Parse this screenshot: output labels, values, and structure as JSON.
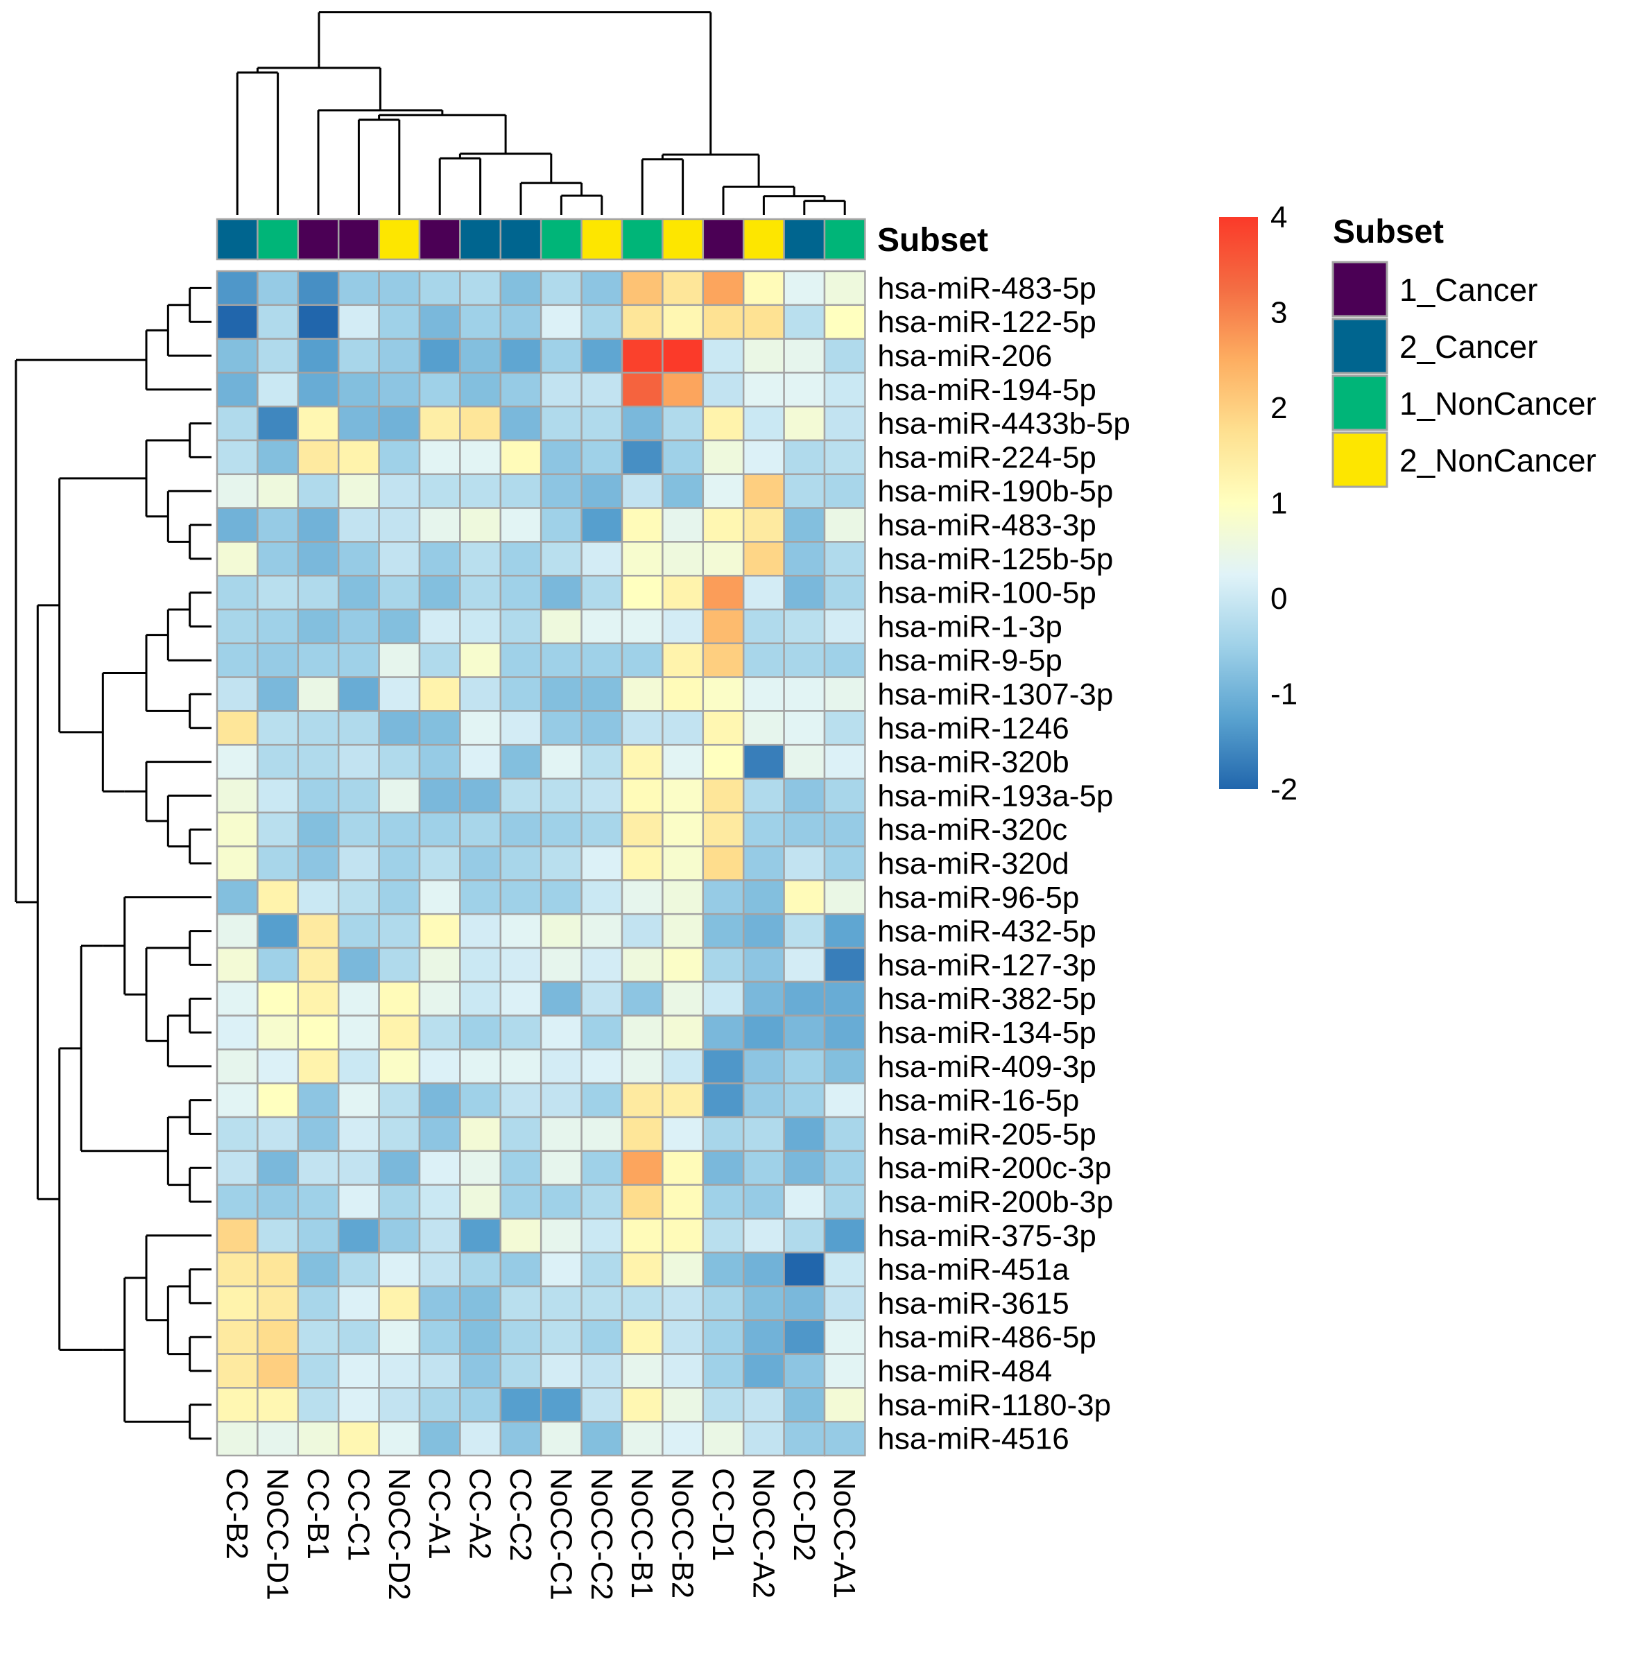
{
  "chart_data": {
    "type": "heatmap",
    "title": "",
    "columns": [
      "CC-B2",
      "NoCC-D1",
      "CC-B1",
      "CC-C1",
      "NoCC-D2",
      "CC-A1",
      "CC-A2",
      "CC-C2",
      "NoCC-C1",
      "NoCC-C2",
      "NoCC-B1",
      "NoCC-B2",
      "CC-D1",
      "NoCC-A2",
      "CC-D2",
      "NoCC-A1"
    ],
    "rows": [
      "hsa-miR-483-5p",
      "hsa-miR-122-5p",
      "hsa-miR-206",
      "hsa-miR-194-5p",
      "hsa-miR-4433b-5p",
      "hsa-miR-224-5p",
      "hsa-miR-190b-5p",
      "hsa-miR-483-3p",
      "hsa-miR-125b-5p",
      "hsa-miR-100-5p",
      "hsa-miR-1-3p",
      "hsa-miR-9-5p",
      "hsa-miR-1307-3p",
      "hsa-miR-1246",
      "hsa-miR-320b",
      "hsa-miR-193a-5p",
      "hsa-miR-320c",
      "hsa-miR-320d",
      "hsa-miR-96-5p",
      "hsa-miR-432-5p",
      "hsa-miR-127-3p",
      "hsa-miR-382-5p",
      "hsa-miR-134-5p",
      "hsa-miR-409-3p",
      "hsa-miR-16-5p",
      "hsa-miR-205-5p",
      "hsa-miR-200c-3p",
      "hsa-miR-200b-3p",
      "hsa-miR-375-3p",
      "hsa-miR-451a",
      "hsa-miR-3615",
      "hsa-miR-486-5p",
      "hsa-miR-484",
      "hsa-miR-1180-3p",
      "hsa-miR-4516"
    ],
    "values": [
      [
        -1.4,
        -0.6,
        -1.5,
        -0.6,
        -0.6,
        -0.4,
        -0.3,
        -0.8,
        -0.3,
        -0.7,
        2.2,
        1.6,
        2.6,
        1.1,
        0.3,
        0.6
      ],
      [
        -2.0,
        -0.3,
        -2.0,
        0.1,
        -0.5,
        -0.9,
        -0.5,
        -0.6,
        0.2,
        -0.4,
        1.6,
        1.2,
        1.7,
        1.7,
        -0.2,
        1.0
      ],
      [
        -0.8,
        -0.3,
        -1.3,
        -0.4,
        -0.6,
        -1.3,
        -0.8,
        -1.2,
        -0.5,
        -1.2,
        3.9,
        4.0,
        0.0,
        0.5,
        0.4,
        -0.3
      ],
      [
        -1.0,
        0.0,
        -1.1,
        -0.8,
        -0.7,
        -0.5,
        -0.8,
        -0.6,
        -0.1,
        -0.1,
        3.4,
        2.6,
        -0.1,
        0.3,
        0.3,
        0.0
      ],
      [
        -0.3,
        -1.6,
        1.2,
        -0.9,
        -1.0,
        1.4,
        1.6,
        -0.9,
        -0.3,
        -0.3,
        -0.9,
        -0.3,
        1.3,
        0.0,
        0.7,
        -0.1
      ],
      [
        -0.2,
        -0.8,
        1.5,
        1.3,
        -0.5,
        0.3,
        0.3,
        1.1,
        -0.7,
        -0.5,
        -1.5,
        -0.5,
        0.6,
        0.2,
        -0.3,
        -0.2
      ],
      [
        0.4,
        0.6,
        -0.3,
        0.6,
        -0.1,
        -0.2,
        -0.2,
        -0.3,
        -0.7,
        -0.9,
        -0.1,
        -0.8,
        0.3,
        2.0,
        -0.3,
        -0.4
      ],
      [
        -1.0,
        -0.6,
        -1.0,
        -0.1,
        -0.1,
        0.4,
        0.6,
        0.3,
        -0.5,
        -1.3,
        1.1,
        0.4,
        1.2,
        1.5,
        -0.8,
        0.5
      ],
      [
        0.7,
        -0.6,
        -0.9,
        -0.6,
        -0.1,
        -0.6,
        -0.2,
        -0.5,
        -0.2,
        0.1,
        0.8,
        0.6,
        0.7,
        1.9,
        -0.7,
        -0.3
      ],
      [
        -0.4,
        -0.2,
        -0.3,
        -0.8,
        -0.4,
        -0.8,
        -0.3,
        -0.5,
        -0.9,
        -0.3,
        1.0,
        1.3,
        2.7,
        0.1,
        -0.9,
        -0.4
      ],
      [
        -0.4,
        -0.5,
        -0.8,
        -0.6,
        -0.8,
        0.1,
        0.0,
        -0.3,
        0.6,
        0.3,
        0.3,
        0.1,
        2.3,
        -0.3,
        -0.2,
        0.1
      ],
      [
        -0.5,
        -0.6,
        -0.5,
        -0.5,
        0.4,
        -0.3,
        0.8,
        -0.5,
        -0.5,
        -0.5,
        -0.5,
        1.3,
        2.0,
        -0.4,
        -0.4,
        -0.5
      ],
      [
        -0.1,
        -0.9,
        0.5,
        -1.1,
        0.1,
        1.3,
        -0.1,
        -0.5,
        -0.8,
        -0.8,
        0.7,
        1.1,
        0.9,
        0.3,
        0.3,
        0.4
      ],
      [
        1.6,
        -0.2,
        -0.3,
        -0.3,
        -0.9,
        -0.8,
        0.3,
        0.1,
        -0.6,
        -0.7,
        -0.1,
        -0.1,
        1.2,
        0.4,
        0.3,
        -0.2
      ],
      [
        0.3,
        -0.3,
        -0.3,
        -0.1,
        -0.3,
        -0.6,
        0.2,
        -0.8,
        0.3,
        -0.2,
        1.2,
        0.3,
        1.0,
        -1.7,
        0.4,
        0.2
      ],
      [
        0.6,
        0.0,
        -0.5,
        -0.4,
        0.4,
        -0.9,
        -0.9,
        -0.2,
        -0.2,
        -0.1,
        1.1,
        0.9,
        1.6,
        -0.3,
        -0.7,
        -0.4
      ],
      [
        0.8,
        -0.2,
        -0.8,
        -0.4,
        -0.5,
        -0.5,
        -0.4,
        -0.6,
        -0.5,
        -0.4,
        1.4,
        0.9,
        1.5,
        -0.5,
        -0.6,
        -0.6
      ],
      [
        0.8,
        -0.4,
        -0.7,
        -0.1,
        -0.5,
        -0.2,
        -0.6,
        -0.4,
        -0.2,
        0.2,
        1.2,
        0.8,
        1.8,
        -0.6,
        -0.1,
        -0.5
      ],
      [
        -0.8,
        1.3,
        0.0,
        -0.2,
        -0.5,
        0.3,
        -0.5,
        -0.5,
        -0.5,
        0.0,
        0.4,
        0.6,
        -0.6,
        -0.8,
        1.1,
        0.5
      ],
      [
        0.4,
        -1.3,
        1.5,
        -0.4,
        -0.3,
        1.1,
        0.1,
        0.3,
        0.6,
        0.4,
        -0.1,
        0.6,
        -0.8,
        -1.0,
        -0.2,
        -1.2
      ],
      [
        0.7,
        -0.5,
        1.4,
        -0.9,
        -0.3,
        0.5,
        0.0,
        0.1,
        0.4,
        0.1,
        0.6,
        0.9,
        -0.4,
        -0.7,
        0.1,
        -1.7
      ],
      [
        0.3,
        1.0,
        1.3,
        0.3,
        1.1,
        0.4,
        0.0,
        0.2,
        -0.9,
        -0.1,
        -0.7,
        0.5,
        0.0,
        -0.9,
        -1.1,
        -1.1
      ],
      [
        0.2,
        0.8,
        1.0,
        0.3,
        1.3,
        -0.2,
        -0.5,
        -0.3,
        0.2,
        -0.5,
        0.5,
        0.7,
        -0.9,
        -1.2,
        -0.9,
        -1.1
      ],
      [
        0.4,
        0.2,
        1.3,
        0.0,
        0.9,
        0.2,
        0.3,
        0.3,
        0.1,
        0.2,
        0.4,
        0.0,
        -1.4,
        -0.7,
        -0.5,
        -0.8
      ],
      [
        0.3,
        1.0,
        -0.7,
        0.3,
        -0.2,
        -0.9,
        -0.5,
        -0.1,
        -0.1,
        -0.5,
        1.5,
        1.4,
        -1.4,
        -0.6,
        -0.5,
        0.2
      ],
      [
        -0.2,
        -0.1,
        -0.7,
        0.1,
        -0.2,
        -0.7,
        0.7,
        -0.3,
        0.4,
        0.4,
        1.6,
        0.2,
        -0.4,
        -0.3,
        -1.1,
        -0.4
      ],
      [
        -0.1,
        -0.9,
        -0.1,
        -0.1,
        -0.9,
        0.2,
        0.4,
        -0.5,
        0.4,
        -0.5,
        2.6,
        1.1,
        -0.9,
        -0.5,
        -0.9,
        -0.5
      ],
      [
        -0.5,
        -0.6,
        -0.5,
        0.2,
        -0.4,
        0.0,
        0.6,
        -0.5,
        -0.5,
        -0.3,
        1.8,
        1.1,
        -0.5,
        -0.6,
        0.2,
        -0.4
      ],
      [
        1.9,
        -0.2,
        -0.5,
        -1.2,
        -0.6,
        -0.1,
        -1.3,
        0.7,
        0.4,
        0.0,
        1.1,
        1.1,
        -0.2,
        0.1,
        -0.3,
        -1.3
      ],
      [
        1.5,
        1.6,
        -0.8,
        -0.3,
        0.2,
        -0.1,
        -0.4,
        -0.6,
        0.2,
        -0.3,
        1.3,
        0.6,
        -0.8,
        -1.0,
        -2.0,
        0.0
      ],
      [
        1.3,
        1.5,
        -0.4,
        0.2,
        1.3,
        -0.7,
        -0.8,
        -0.2,
        -0.2,
        -0.2,
        -0.2,
        -0.1,
        -0.4,
        -0.8,
        -0.9,
        -0.1
      ],
      [
        1.5,
        1.8,
        -0.2,
        -0.3,
        0.3,
        -0.5,
        -0.8,
        -0.4,
        -0.2,
        -0.5,
        1.2,
        -0.1,
        -0.5,
        -1.0,
        -1.4,
        0.3
      ],
      [
        1.5,
        2.0,
        -0.3,
        0.2,
        0.1,
        -0.1,
        -0.7,
        -0.3,
        0.1,
        -0.1,
        0.4,
        0.1,
        -0.5,
        -1.1,
        -0.7,
        0.3
      ],
      [
        1.2,
        1.2,
        -0.2,
        0.2,
        -0.1,
        -0.4,
        -0.5,
        -1.3,
        -1.3,
        -0.1,
        1.2,
        0.5,
        -0.2,
        -0.1,
        -0.8,
        0.7
      ],
      [
        0.5,
        0.4,
        0.6,
        1.2,
        0.3,
        -0.8,
        0.1,
        -0.7,
        0.4,
        -0.8,
        0.4,
        0.2,
        0.5,
        -0.1,
        -0.6,
        -0.6
      ]
    ],
    "annotation": {
      "title": "Subset",
      "column_groups": [
        "2_Cancer",
        "1_NonCancer",
        "1_Cancer",
        "1_Cancer",
        "2_NonCancer",
        "1_Cancer",
        "2_Cancer",
        "2_Cancer",
        "1_NonCancer",
        "2_NonCancer",
        "1_NonCancer",
        "2_NonCancer",
        "1_Cancer",
        "2_NonCancer",
        "2_Cancer",
        "1_NonCancer"
      ],
      "legend": [
        {
          "name": "1_Cancer",
          "color": "#4b0055"
        },
        {
          "name": "2_Cancer",
          "color": "#00658f"
        },
        {
          "name": "1_NonCancer",
          "color": "#00b578"
        },
        {
          "name": "2_NonCancer",
          "color": "#fde600"
        }
      ]
    },
    "color_scale": {
      "range": [
        -2,
        4
      ],
      "ticks": [
        "4",
        "3",
        "2",
        "1",
        "0",
        "-1",
        "-2"
      ],
      "colors": [
        "#2166ac",
        "#5aa3d0",
        "#9fd1e8",
        "#e0f3f8",
        "#ffffbf",
        "#fee090",
        "#fdae61",
        "#f46d43",
        "#fb3a29"
      ]
    },
    "dendrograms": {
      "column_tree": "((((CC-B2,NoCC-D1),(CC-B1,((CC-C1,NoCC-D2),((CC-A1,CC-A2),(CC-C2,(NoCC-C1,NoCC-C2))))))),((NoCC-B1,NoCC-B2),(CC-D1,(NoCC-A2,(CC-D2,NoCC-A1)))))",
      "row_tree": "rows 1-4 vs rows 5-35 with nested subclusters"
    }
  }
}
